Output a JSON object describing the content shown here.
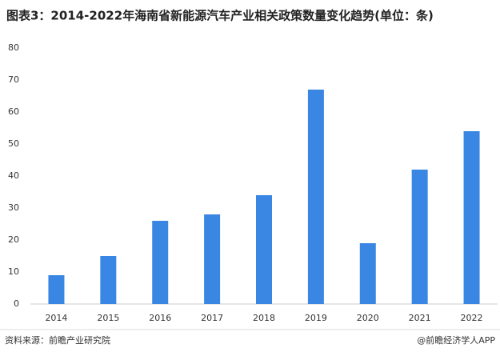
{
  "chart_data": {
    "type": "bar",
    "title": "图表3：2014-2022年海南省新能源汽车产业相关政策数量变化趋势(单位：条)",
    "categories": [
      "2014",
      "2015",
      "2016",
      "2017",
      "2018",
      "2019",
      "2020",
      "2021",
      "2022"
    ],
    "values": [
      9,
      15,
      26,
      28,
      34,
      67,
      19,
      42,
      54
    ],
    "color": "#3a86e3",
    "ylim": [
      0,
      80
    ],
    "yticks": [
      0,
      10,
      20,
      30,
      40,
      50,
      60,
      70,
      80
    ],
    "grid": false,
    "source": "资料来源：前瞻产业研究院",
    "brand": "@前瞻经济学人APP"
  }
}
